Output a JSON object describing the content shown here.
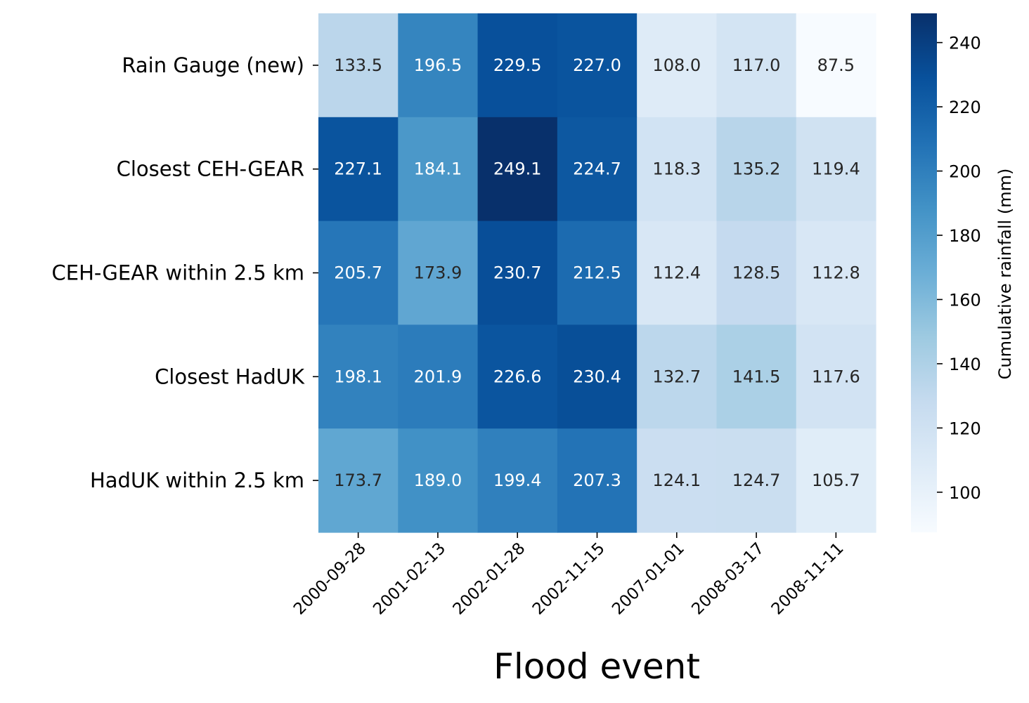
{
  "chart_data": {
    "type": "heatmap",
    "title": "",
    "xlabel": "Flood event",
    "ylabel": "",
    "x": [
      "2000-09-28",
      "2001-02-13",
      "2002-01-28",
      "2002-11-15",
      "2007-01-01",
      "2008-03-17",
      "2008-11-11"
    ],
    "y": [
      "Rain Gauge (new)",
      "Closest CEH-GEAR",
      "CEH-GEAR within 2.5 km",
      "Closest HadUK",
      "HadUK within 2.5 km"
    ],
    "values": [
      [
        133.5,
        196.5,
        229.5,
        227.0,
        108.0,
        117.0,
        87.5
      ],
      [
        227.1,
        184.1,
        249.1,
        224.7,
        118.3,
        135.2,
        119.4
      ],
      [
        205.7,
        173.9,
        230.7,
        212.5,
        112.4,
        128.5,
        112.8
      ],
      [
        198.1,
        201.9,
        226.6,
        230.4,
        132.7,
        141.5,
        117.6
      ],
      [
        173.7,
        189.0,
        199.4,
        207.3,
        124.1,
        124.7,
        105.7
      ]
    ],
    "annotation_format": "0.1f",
    "colormap": "Blues",
    "colorbar": {
      "label": "Cumulative rainfall (mm)",
      "range": [
        87.5,
        249.1
      ],
      "ticks": [
        100,
        120,
        140,
        160,
        180,
        200,
        220,
        240
      ]
    }
  }
}
